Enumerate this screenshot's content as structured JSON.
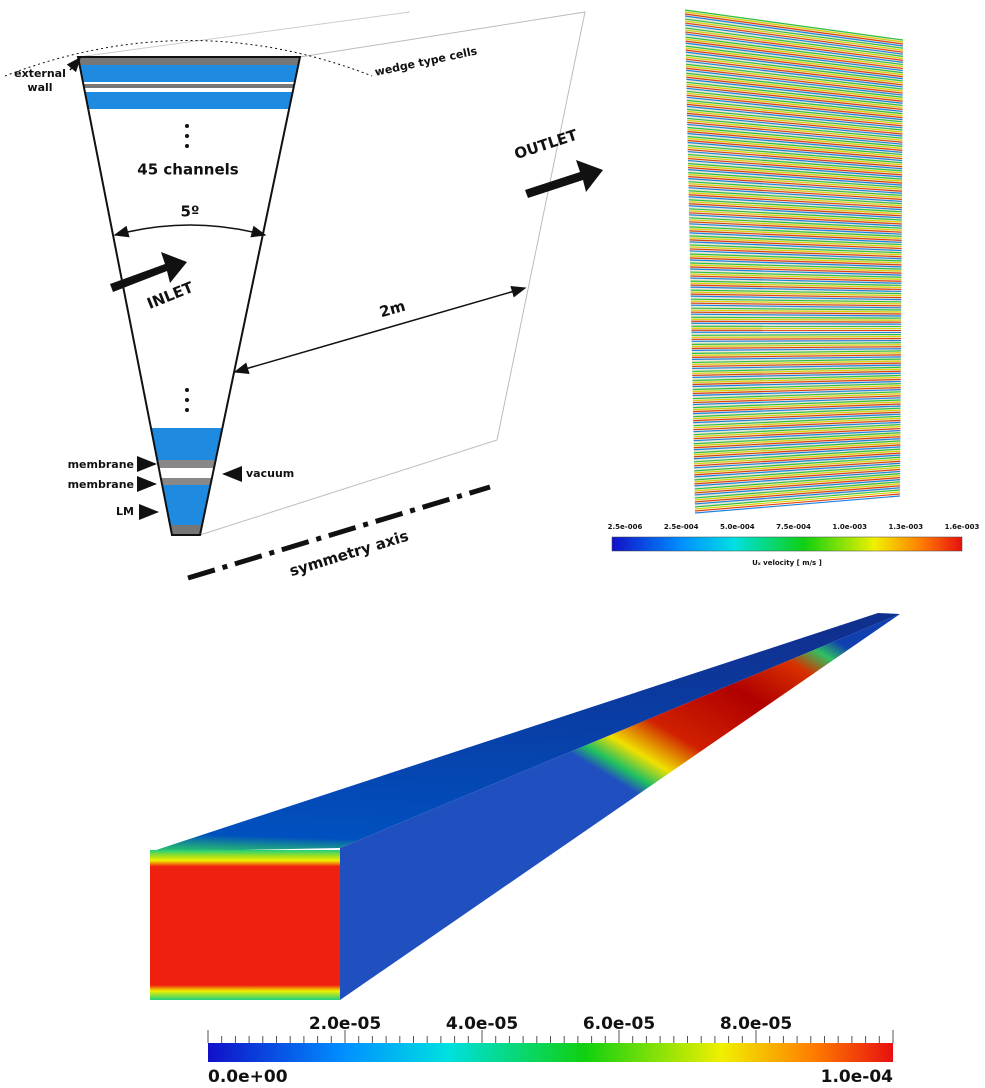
{
  "wedge_diagram": {
    "external_wall": [
      "external",
      "wall"
    ],
    "wedge_type_cells": "wedge type cells",
    "channels": "45 channels",
    "angle": "5º",
    "inlet": "INLET",
    "outlet": "OUTLET",
    "distance": "2m",
    "membrane_1": "membrane",
    "membrane_2": "membrane",
    "vacuum": "vacuum",
    "lm": "LM",
    "symmetry_axis": "symmetry axis"
  },
  "velocity_plot": {
    "colorbar_labels": [
      "2.5e-006",
      "2.5e-004",
      "5.0e-004",
      "7.5e-004",
      "1.0e-003",
      "1.3e-003",
      "1.6e-003"
    ],
    "colorbar_title": "Uₓ velocity [ m/s ]"
  },
  "field_plot": {
    "colorbar_labels": [
      "0.0e+00",
      "2.0e-05",
      "4.0e-05",
      "6.0e-05",
      "8.0e-05",
      "1.0e-04"
    ]
  }
}
